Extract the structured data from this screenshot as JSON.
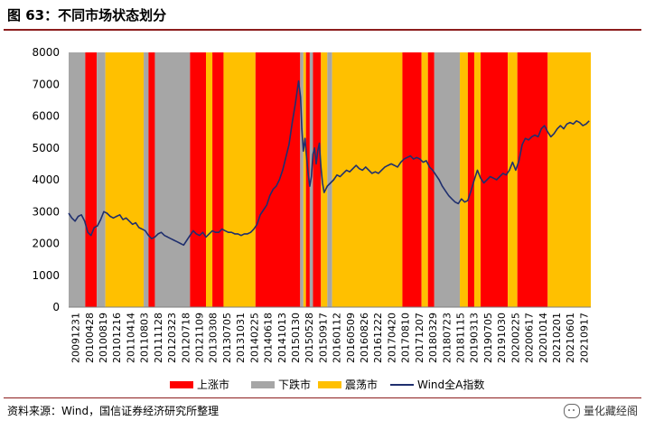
{
  "figure": {
    "title": "图 63：不同市场状态划分",
    "source": "资料来源：Wind，国信证券经济研究所整理",
    "watermark": "量化藏经阁"
  },
  "colors": {
    "bull": "#ff0000",
    "bear": "#a6a6a6",
    "range": "#ffc000",
    "line": "#1f2f6e",
    "rule": "#8c1d1d"
  },
  "chart_data": {
    "type": "line",
    "title": "",
    "xlabel": "",
    "ylabel": "",
    "ylim": [
      0,
      8000
    ],
    "y_ticks": [
      0,
      1000,
      2000,
      3000,
      4000,
      5000,
      6000,
      7000,
      8000
    ],
    "x_tick_labels": [
      "20091231",
      "20100428",
      "20100819",
      "20101216",
      "20110414",
      "20110803",
      "20111128",
      "20120323",
      "20120718",
      "20121109",
      "20130308",
      "20130705",
      "20131031",
      "20140225",
      "20140618",
      "20141013",
      "20150130",
      "20150528",
      "20150917",
      "20160112",
      "20160509",
      "20160826",
      "20161222",
      "20170420",
      "20170810",
      "20171207",
      "20180329",
      "20180723",
      "20181115",
      "20190313",
      "20190705",
      "20191030",
      "20200225",
      "20200617",
      "20201014",
      "20210201",
      "20210601",
      "20210917"
    ],
    "legend": [
      {
        "key": "bull",
        "label": "上涨市"
      },
      {
        "key": "bear",
        "label": "下跌市"
      },
      {
        "key": "range",
        "label": "震荡市"
      },
      {
        "key": "line",
        "label": "Wind全A指数"
      }
    ],
    "regimes": [
      {
        "start": 0,
        "end": 5.2,
        "state": "bear"
      },
      {
        "start": 5.2,
        "end": 8.8,
        "state": "bull"
      },
      {
        "start": 8.8,
        "end": 11.5,
        "state": "bear"
      },
      {
        "start": 11.5,
        "end": 23.5,
        "state": "range"
      },
      {
        "start": 23.5,
        "end": 25.0,
        "state": "bear"
      },
      {
        "start": 25.0,
        "end": 27.0,
        "state": "bull"
      },
      {
        "start": 27.0,
        "end": 38.0,
        "state": "bear"
      },
      {
        "start": 38.0,
        "end": 43.0,
        "state": "bull"
      },
      {
        "start": 43.0,
        "end": 45.0,
        "state": "range"
      },
      {
        "start": 45.0,
        "end": 48.5,
        "state": "bull"
      },
      {
        "start": 48.5,
        "end": 58.5,
        "state": "range"
      },
      {
        "start": 58.5,
        "end": 72.5,
        "state": "bull"
      },
      {
        "start": 72.5,
        "end": 73.5,
        "state": "bear"
      },
      {
        "start": 73.5,
        "end": 74.3,
        "state": "range"
      },
      {
        "start": 74.3,
        "end": 75.5,
        "state": "bull"
      },
      {
        "start": 75.5,
        "end": 76.5,
        "state": "bear"
      },
      {
        "start": 76.5,
        "end": 79.0,
        "state": "bull"
      },
      {
        "start": 79.0,
        "end": 81.0,
        "state": "range"
      },
      {
        "start": 81.0,
        "end": 82.5,
        "state": "bear"
      },
      {
        "start": 82.5,
        "end": 104.5,
        "state": "range"
      },
      {
        "start": 104.5,
        "end": 110.5,
        "state": "bull"
      },
      {
        "start": 110.5,
        "end": 112.5,
        "state": "range"
      },
      {
        "start": 112.5,
        "end": 114.5,
        "state": "bull"
      },
      {
        "start": 114.5,
        "end": 122.5,
        "state": "bear"
      },
      {
        "start": 122.5,
        "end": 125.0,
        "state": "range"
      },
      {
        "start": 125.0,
        "end": 127.0,
        "state": "bull"
      },
      {
        "start": 127.0,
        "end": 129.0,
        "state": "range"
      },
      {
        "start": 129.0,
        "end": 137.5,
        "state": "bull"
      },
      {
        "start": 137.5,
        "end": 140.5,
        "state": "range"
      },
      {
        "start": 140.5,
        "end": 150.0,
        "state": "bull"
      },
      {
        "start": 150.0,
        "end": 163.5,
        "state": "range"
      }
    ],
    "series": [
      {
        "name": "Wind全A指数",
        "points": [
          [
            0,
            2950
          ],
          [
            1,
            2800
          ],
          [
            2,
            2700
          ],
          [
            3,
            2850
          ],
          [
            4,
            2900
          ],
          [
            5,
            2700
          ],
          [
            6,
            2350
          ],
          [
            7,
            2250
          ],
          [
            8,
            2500
          ],
          [
            9,
            2550
          ],
          [
            10,
            2750
          ],
          [
            11,
            3000
          ],
          [
            12,
            2950
          ],
          [
            13,
            2850
          ],
          [
            14,
            2800
          ],
          [
            15,
            2850
          ],
          [
            16,
            2900
          ],
          [
            17,
            2750
          ],
          [
            18,
            2800
          ],
          [
            19,
            2700
          ],
          [
            20,
            2600
          ],
          [
            21,
            2650
          ],
          [
            22,
            2500
          ],
          [
            23,
            2450
          ],
          [
            24,
            2400
          ],
          [
            25,
            2250
          ],
          [
            26,
            2150
          ],
          [
            27,
            2200
          ],
          [
            28,
            2300
          ],
          [
            29,
            2350
          ],
          [
            30,
            2250
          ],
          [
            31,
            2200
          ],
          [
            32,
            2150
          ],
          [
            33,
            2100
          ],
          [
            34,
            2050
          ],
          [
            35,
            2000
          ],
          [
            36,
            1950
          ],
          [
            37,
            2100
          ],
          [
            38,
            2250
          ],
          [
            39,
            2400
          ],
          [
            40,
            2300
          ],
          [
            41,
            2250
          ],
          [
            42,
            2350
          ],
          [
            43,
            2200
          ],
          [
            44,
            2300
          ],
          [
            45,
            2400
          ],
          [
            46,
            2350
          ],
          [
            47,
            2350
          ],
          [
            48,
            2450
          ],
          [
            49,
            2400
          ],
          [
            50,
            2350
          ],
          [
            51,
            2350
          ],
          [
            52,
            2300
          ],
          [
            53,
            2300
          ],
          [
            54,
            2250
          ],
          [
            55,
            2300
          ],
          [
            56,
            2300
          ],
          [
            57,
            2350
          ],
          [
            58,
            2450
          ],
          [
            59,
            2600
          ],
          [
            60,
            2900
          ],
          [
            61,
            3050
          ],
          [
            62,
            3200
          ],
          [
            63,
            3500
          ],
          [
            64,
            3700
          ],
          [
            65,
            3800
          ],
          [
            66,
            4000
          ],
          [
            67,
            4300
          ],
          [
            68,
            4700
          ],
          [
            69,
            5100
          ],
          [
            70,
            5800
          ],
          [
            71,
            6400
          ],
          [
            72,
            7100
          ],
          [
            72.6,
            6600
          ],
          [
            73,
            5600
          ],
          [
            73.5,
            4900
          ],
          [
            74,
            5300
          ],
          [
            74.5,
            4700
          ],
          [
            75,
            4200
          ],
          [
            75.5,
            3800
          ],
          [
            76,
            4100
          ],
          [
            76.5,
            4800
          ],
          [
            77,
            5000
          ],
          [
            77.5,
            4500
          ],
          [
            78,
            4900
          ],
          [
            78.5,
            5150
          ],
          [
            79,
            4400
          ],
          [
            79.5,
            3900
          ],
          [
            80,
            3600
          ],
          [
            81,
            3800
          ],
          [
            82,
            3900
          ],
          [
            83,
            4000
          ],
          [
            84,
            4150
          ],
          [
            85,
            4100
          ],
          [
            86,
            4200
          ],
          [
            87,
            4300
          ],
          [
            88,
            4250
          ],
          [
            89,
            4350
          ],
          [
            90,
            4450
          ],
          [
            91,
            4350
          ],
          [
            92,
            4300
          ],
          [
            93,
            4400
          ],
          [
            94,
            4300
          ],
          [
            95,
            4200
          ],
          [
            96,
            4250
          ],
          [
            97,
            4200
          ],
          [
            98,
            4300
          ],
          [
            99,
            4400
          ],
          [
            100,
            4450
          ],
          [
            101,
            4500
          ],
          [
            102,
            4450
          ],
          [
            103,
            4400
          ],
          [
            104,
            4550
          ],
          [
            105,
            4650
          ],
          [
            106,
            4700
          ],
          [
            107,
            4750
          ],
          [
            108,
            4650
          ],
          [
            109,
            4700
          ],
          [
            110,
            4650
          ],
          [
            111,
            4550
          ],
          [
            112,
            4600
          ],
          [
            113,
            4400
          ],
          [
            114,
            4300
          ],
          [
            115,
            4150
          ],
          [
            116,
            4000
          ],
          [
            117,
            3800
          ],
          [
            118,
            3650
          ],
          [
            119,
            3500
          ],
          [
            120,
            3400
          ],
          [
            121,
            3300
          ],
          [
            122,
            3250
          ],
          [
            123,
            3400
          ],
          [
            124,
            3300
          ],
          [
            125,
            3350
          ],
          [
            126,
            3650
          ],
          [
            127,
            4000
          ],
          [
            128,
            4300
          ],
          [
            129,
            4050
          ],
          [
            130,
            3900
          ],
          [
            131,
            4000
          ],
          [
            132,
            4100
          ],
          [
            133,
            4050
          ],
          [
            134,
            4000
          ],
          [
            135,
            4100
          ],
          [
            136,
            4200
          ],
          [
            137,
            4150
          ],
          [
            138,
            4300
          ],
          [
            139,
            4550
          ],
          [
            140,
            4300
          ],
          [
            141,
            4600
          ],
          [
            142,
            5100
          ],
          [
            143,
            5300
          ],
          [
            144,
            5250
          ],
          [
            145,
            5350
          ],
          [
            146,
            5400
          ],
          [
            147,
            5350
          ],
          [
            148,
            5600
          ],
          [
            149,
            5700
          ],
          [
            150,
            5500
          ],
          [
            151,
            5350
          ],
          [
            152,
            5450
          ],
          [
            153,
            5600
          ],
          [
            154,
            5700
          ],
          [
            155,
            5600
          ],
          [
            156,
            5750
          ],
          [
            157,
            5800
          ],
          [
            158,
            5750
          ],
          [
            159,
            5850
          ],
          [
            160,
            5800
          ],
          [
            161,
            5700
          ],
          [
            162,
            5750
          ],
          [
            163,
            5850
          ]
        ]
      }
    ]
  }
}
